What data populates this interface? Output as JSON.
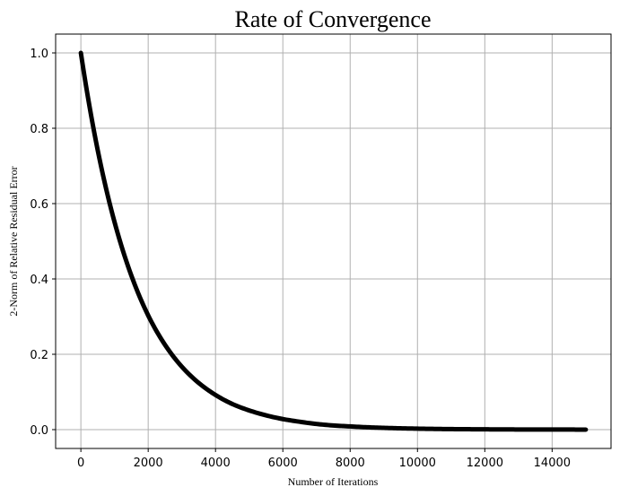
{
  "chart_data": {
    "type": "line",
    "title": "Rate of Convergence",
    "xlabel": "Number of Iterations",
    "ylabel": "2-Norm of Relative Residual Error",
    "xlim": [
      -750,
      15750
    ],
    "ylim": [
      -0.05,
      1.05
    ],
    "xticks": [
      0,
      2000,
      4000,
      6000,
      8000,
      10000,
      12000,
      14000
    ],
    "yticks": [
      0.0,
      0.2,
      0.4,
      0.6,
      0.8,
      1.0
    ],
    "xtick_labels": [
      "0",
      "2000",
      "4000",
      "6000",
      "8000",
      "10000",
      "12000",
      "14000"
    ],
    "ytick_labels": [
      "0.0",
      "0.2",
      "0.4",
      "0.6",
      "0.8",
      "1.0"
    ],
    "grid": true,
    "series": [
      {
        "color": "#000000",
        "x": [
          0,
          500,
          1000,
          1500,
          2000,
          2500,
          3000,
          3500,
          4000,
          4500,
          5000,
          5500,
          6000,
          6500,
          7000,
          7500,
          8000,
          8500,
          9000,
          9500,
          10000,
          10500,
          11000,
          11500,
          12000,
          12500,
          13000,
          13500,
          14000,
          14500,
          15000
        ],
        "y": [
          1.0,
          0.742,
          0.551,
          0.409,
          0.303,
          0.225,
          0.167,
          0.124,
          0.092,
          0.068,
          0.051,
          0.038,
          0.028,
          0.021,
          0.015,
          0.011,
          0.0085,
          0.0063,
          0.0047,
          0.0035,
          0.0026,
          0.0019,
          0.0014,
          0.0011,
          0.0008,
          0.0006,
          0.0004,
          0.0003,
          0.0002,
          0.0002,
          0.0001
        ]
      }
    ]
  }
}
